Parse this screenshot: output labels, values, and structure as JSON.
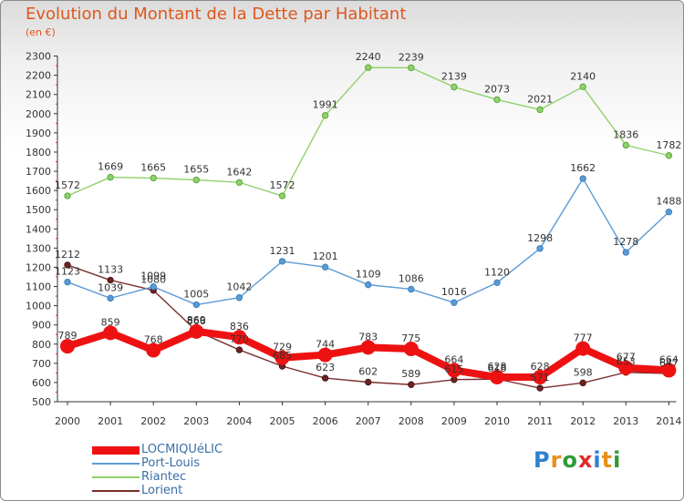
{
  "title": "Evolution du Montant de la Dette par Habitant",
  "subtitle": "(en €)",
  "logo": {
    "letters": [
      "P",
      "r",
      "o",
      "x",
      "i",
      "t",
      "i"
    ],
    "colors": [
      "#2f7fd0",
      "#e8901c",
      "#2f9a3a",
      "#e02a2a",
      "#2f7fd0",
      "#e8901c",
      "#2f9a3a"
    ]
  },
  "chart_data": {
    "type": "line",
    "title": "Evolution du Montant de la Dette par Habitant",
    "ylabel": "(en €)",
    "ylim": [
      500,
      2300
    ],
    "yticks": [
      500,
      600,
      700,
      800,
      900,
      1000,
      1100,
      1200,
      1300,
      1400,
      1500,
      1600,
      1700,
      1800,
      1900,
      2000,
      2100,
      2200,
      2300
    ],
    "grid": false,
    "legend": "bottom-left",
    "categories": [
      "2000",
      "2001",
      "2002",
      "2003",
      "2004",
      "2005",
      "2006",
      "2007",
      "2008",
      "2009",
      "2010",
      "2011",
      "2012",
      "2013",
      "2014"
    ],
    "series": [
      {
        "name": "LOCMIQUéLIC",
        "color": "#ee1111",
        "values": [
          789,
          859,
          768,
          866,
          836,
          729,
          744,
          783,
          775,
          664,
          628,
          628,
          777,
          677,
          664
        ]
      },
      {
        "name": "Port-Louis",
        "color": "#5b9bd5",
        "values": [
          1123,
          1039,
          1099,
          1005,
          1042,
          1231,
          1201,
          1109,
          1086,
          1016,
          1120,
          1298,
          1662,
          1278,
          1488
        ]
      },
      {
        "name": "Riantec",
        "color": "#8fd16a",
        "values": [
          1572,
          1669,
          1665,
          1655,
          1642,
          1572,
          1991,
          2240,
          2239,
          2139,
          2073,
          2021,
          2140,
          1836,
          1782
        ]
      },
      {
        "name": "Lorient",
        "color": "#7a2e2e",
        "values": [
          1212,
          1133,
          1080,
          869,
          770,
          685,
          623,
          602,
          589,
          615,
          618,
          571,
          598,
          653,
          647
        ]
      }
    ]
  }
}
